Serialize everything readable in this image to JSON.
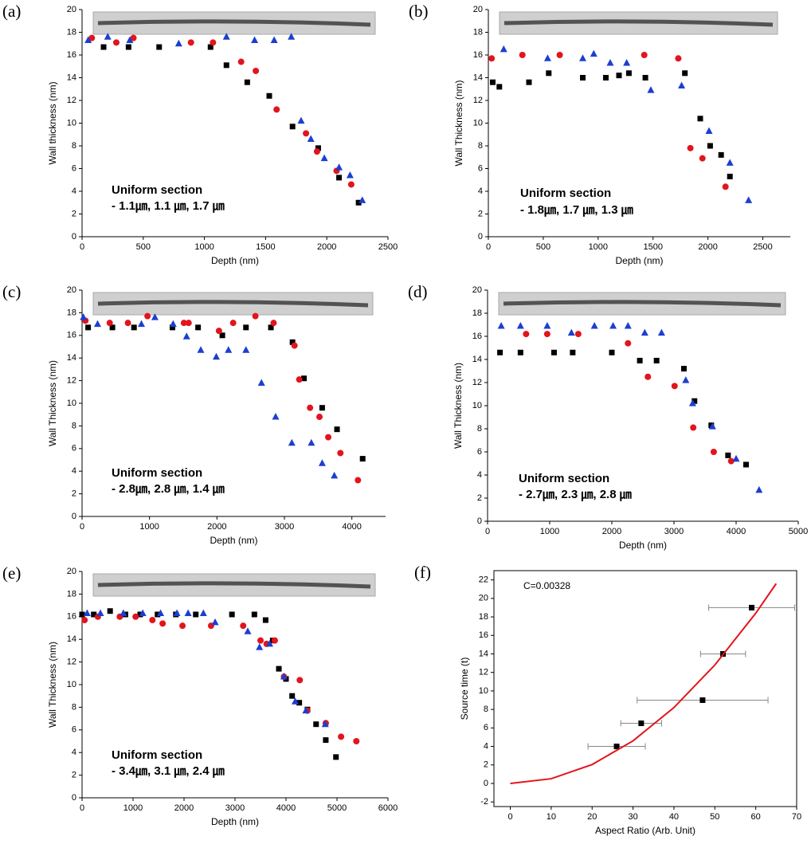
{
  "chart_data": [
    {
      "type": "scatter",
      "panel_label": "(a)",
      "x_label": "Depth (nm)",
      "y_label": "Wall thickness (nm)",
      "annotations": [
        "Uniform section",
        "- 1.1㎛, 1.1 ㎛, 1.7 ㎛"
      ],
      "xlim": [
        0,
        2500
      ],
      "xticks": [
        0,
        500,
        1000,
        1500,
        2000,
        2500
      ],
      "ylim": [
        0,
        20
      ],
      "yticks": [
        0,
        2,
        4,
        6,
        8,
        10,
        12,
        14,
        16,
        18,
        20
      ],
      "series": [
        {
          "marker": "square",
          "color": "#000000",
          "x": [
            176,
            380,
            630,
            1050,
            1180,
            1350,
            1530,
            1720,
            1930,
            2100,
            2260
          ],
          "values": [
            16.7,
            16.7,
            16.7,
            16.7,
            15.1,
            13.6,
            12.4,
            9.7,
            7.8,
            5.2,
            3.0
          ]
        },
        {
          "marker": "circle",
          "color": "#e3141c",
          "x": [
            80,
            280,
            420,
            890,
            1070,
            1300,
            1420,
            1590,
            1830,
            1920,
            2080,
            2200
          ],
          "values": [
            17.5,
            17.1,
            17.5,
            17.1,
            17.1,
            15.4,
            14.6,
            11.2,
            9.1,
            7.5,
            5.8,
            4.6
          ]
        },
        {
          "marker": "triangle",
          "color": "#1c3fd0",
          "x": [
            50,
            210,
            390,
            790,
            1180,
            1410,
            1570,
            1710,
            1790,
            1870,
            1980,
            2100,
            2190,
            2290
          ],
          "values": [
            17.3,
            17.6,
            17.3,
            17.0,
            17.6,
            17.3,
            17.3,
            17.6,
            10.2,
            8.6,
            6.9,
            6.1,
            5.4,
            3.2
          ]
        }
      ]
    },
    {
      "type": "scatter",
      "panel_label": "(b)",
      "x_label": "Depth (nm)",
      "y_label": "Wall Thickness (nm)",
      "annotations": [
        "Uniform section",
        "- 1.8㎛, 1.7 ㎛, 1.3 ㎛"
      ],
      "xlim": [
        0,
        2750
      ],
      "xticks": [
        0,
        500,
        1000,
        1500,
        2000,
        2500
      ],
      "ylim": [
        0,
        20
      ],
      "yticks": [
        0,
        2,
        4,
        6,
        8,
        10,
        12,
        14,
        16,
        18,
        20
      ],
      "series": [
        {
          "marker": "square",
          "color": "#000000",
          "x": [
            40,
            100,
            370,
            550,
            860,
            1070,
            1190,
            1280,
            1430,
            1790,
            1930,
            2020,
            2120,
            2200
          ],
          "values": [
            13.6,
            13.2,
            13.6,
            14.4,
            14.0,
            14.0,
            14.2,
            14.4,
            14.0,
            14.4,
            10.4,
            8.0,
            7.2,
            5.3
          ]
        },
        {
          "marker": "circle",
          "color": "#e3141c",
          "x": [
            30,
            310,
            650,
            1420,
            1730,
            1840,
            1950,
            2160
          ],
          "values": [
            15.7,
            16.0,
            16.0,
            16.0,
            15.7,
            7.8,
            6.9,
            4.4
          ]
        },
        {
          "marker": "triangle",
          "color": "#1c3fd0",
          "x": [
            140,
            540,
            860,
            960,
            1110,
            1260,
            1480,
            1760,
            2010,
            2200,
            2370
          ],
          "values": [
            16.5,
            15.7,
            15.7,
            16.1,
            15.3,
            15.3,
            12.9,
            13.3,
            9.3,
            6.5,
            3.2
          ]
        }
      ]
    },
    {
      "type": "scatter",
      "panel_label": "(c)",
      "x_label": "Depth (nm)",
      "y_label": "Wall Thickness (nm)",
      "annotations": [
        "Uniform section",
        "- 2.8㎛, 2.8 ㎛, 1.4 ㎛"
      ],
      "xlim": [
        0,
        4500
      ],
      "xticks": [
        0,
        1000,
        2000,
        3000,
        4000
      ],
      "ylim": [
        0,
        20
      ],
      "yticks": [
        0,
        2,
        4,
        6,
        8,
        10,
        12,
        14,
        16,
        18,
        20
      ],
      "series": [
        {
          "marker": "square",
          "color": "#000000",
          "x": [
            90,
            450,
            770,
            1340,
            1720,
            2080,
            2430,
            2800,
            3120,
            3290,
            3560,
            3780,
            4160
          ],
          "values": [
            16.7,
            16.7,
            16.7,
            16.7,
            16.7,
            16.0,
            16.7,
            16.7,
            15.4,
            12.2,
            9.6,
            7.7,
            5.1
          ]
        },
        {
          "marker": "circle",
          "color": "#e3141c",
          "x": [
            50,
            410,
            680,
            970,
            1510,
            1580,
            2030,
            2240,
            2570,
            2840,
            3150,
            3220,
            3380,
            3520,
            3650,
            3830,
            4090
          ],
          "values": [
            17.3,
            17.1,
            17.1,
            17.7,
            17.1,
            17.1,
            16.4,
            17.1,
            17.7,
            17.1,
            15.1,
            12.1,
            9.6,
            8.8,
            7.0,
            5.6,
            3.2
          ]
        },
        {
          "marker": "triangle",
          "color": "#1c3fd0",
          "x": [
            20,
            230,
            880,
            1080,
            1350,
            1550,
            1760,
            1990,
            2170,
            2430,
            2660,
            2870,
            3110,
            3400,
            3560,
            3740
          ],
          "values": [
            17.6,
            17.0,
            17.0,
            17.6,
            17.0,
            15.9,
            14.7,
            14.1,
            14.7,
            14.7,
            11.8,
            8.8,
            6.5,
            6.5,
            4.7,
            3.6
          ]
        }
      ]
    },
    {
      "type": "scatter",
      "panel_label": "(d)",
      "x_label": "Depth (nm)",
      "y_label": "Wall Thickness (nm)",
      "annotations": [
        "Uniform section",
        "- 2.7㎛, 2.3 ㎛, 2.8 ㎛"
      ],
      "xlim": [
        0,
        5000
      ],
      "xticks": [
        0,
        1000,
        2000,
        3000,
        4000,
        5000
      ],
      "ylim": [
        0,
        20
      ],
      "yticks": [
        0,
        2,
        4,
        6,
        8,
        10,
        12,
        14,
        16,
        18,
        20
      ],
      "series": [
        {
          "marker": "square",
          "color": "#000000",
          "x": [
            200,
            530,
            1070,
            1370,
            2000,
            2450,
            2720,
            3160,
            3330,
            3600,
            3870,
            4160
          ],
          "values": [
            14.6,
            14.6,
            14.6,
            14.6,
            14.6,
            13.9,
            13.9,
            13.2,
            10.4,
            8.3,
            5.7,
            4.9
          ]
        },
        {
          "marker": "circle",
          "color": "#e3141c",
          "x": [
            620,
            960,
            1460,
            2260,
            2580,
            3010,
            3310,
            3640,
            3920
          ],
          "values": [
            16.2,
            16.2,
            16.2,
            15.4,
            12.5,
            11.7,
            8.1,
            6.0,
            5.2
          ]
        },
        {
          "marker": "triangle",
          "color": "#1c3fd0",
          "x": [
            220,
            530,
            960,
            1350,
            1720,
            2020,
            2260,
            2530,
            2800,
            3190,
            3300,
            3620,
            4000,
            4370
          ],
          "values": [
            16.9,
            16.9,
            16.9,
            16.3,
            16.9,
            16.9,
            16.9,
            16.3,
            16.3,
            12.2,
            10.2,
            8.2,
            5.4,
            2.7
          ]
        }
      ]
    },
    {
      "type": "scatter",
      "panel_label": "(e)",
      "x_label": "Depth (nm)",
      "y_label": "Wall Thickness (nm)",
      "annotations": [
        "Uniform section",
        "- 3.4㎛, 3.1 ㎛, 2.4 ㎛"
      ],
      "xlim": [
        0,
        6000
      ],
      "xticks": [
        0,
        1000,
        2000,
        3000,
        4000,
        5000,
        6000
      ],
      "ylim": [
        0,
        20
      ],
      "yticks": [
        0,
        2,
        4,
        6,
        8,
        10,
        12,
        14,
        16,
        18,
        20
      ],
      "series": [
        {
          "marker": "square",
          "color": "#000000",
          "x": [
            0,
            230,
            550,
            850,
            1140,
            1480,
            1840,
            2230,
            2940,
            3380,
            3600,
            3740,
            3860,
            4000,
            4120,
            4260,
            4420,
            4590,
            4780,
            4980
          ],
          "values": [
            16.2,
            16.2,
            16.5,
            16.2,
            16.2,
            16.2,
            16.2,
            16.2,
            16.2,
            16.2,
            15.7,
            13.9,
            11.4,
            10.5,
            9.0,
            8.4,
            7.8,
            6.5,
            5.1,
            3.6
          ]
        },
        {
          "marker": "circle",
          "color": "#e3141c",
          "x": [
            50,
            310,
            740,
            1050,
            1380,
            1580,
            1970,
            2530,
            3160,
            3500,
            3620,
            3780,
            3960,
            4270,
            4420,
            4780,
            5080,
            5380
          ],
          "values": [
            15.7,
            16.0,
            16.0,
            16.0,
            15.7,
            15.4,
            15.2,
            15.2,
            15.2,
            13.9,
            13.6,
            13.9,
            10.7,
            10.4,
            7.7,
            6.6,
            5.4,
            5.0
          ]
        },
        {
          "marker": "triangle",
          "color": "#1c3fd0",
          "x": [
            100,
            360,
            810,
            1190,
            1540,
            1860,
            2080,
            2380,
            2610,
            3250,
            3480,
            3680,
            3960,
            4180,
            4390,
            4770
          ],
          "values": [
            16.3,
            16.3,
            16.3,
            16.3,
            16.3,
            16.3,
            16.3,
            16.3,
            15.5,
            14.7,
            13.3,
            13.6,
            10.7,
            8.5,
            7.7,
            6.5
          ]
        }
      ]
    },
    {
      "type": "scatter",
      "panel_label": "(f)",
      "x_label": "Aspect Ratio (Arb. Unit)",
      "y_label": "Source time (t)",
      "annotations": [
        "C=0.00328"
      ],
      "frame": true,
      "xlim": [
        -4,
        70
      ],
      "xticks": [
        0,
        10,
        20,
        30,
        40,
        50,
        60,
        70
      ],
      "ylim": [
        -2.5,
        23
      ],
      "yticks": [
        -2,
        0,
        2,
        4,
        6,
        8,
        10,
        12,
        14,
        16,
        18,
        20,
        22
      ],
      "series": [
        {
          "marker": "square",
          "color": "#000000",
          "x": [
            26,
            32,
            47,
            52,
            59
          ],
          "values": [
            4,
            6.5,
            9,
            14,
            19
          ],
          "xerr": [
            7,
            5,
            16,
            5.5,
            10.5
          ]
        },
        {
          "marker": "line",
          "color": "#e3141c",
          "x": [
            0,
            10,
            20,
            30,
            40,
            50,
            60,
            65
          ],
          "values": [
            0,
            0.51,
            2.04,
            4.6,
            8.2,
            12.8,
            18.4,
            21.6
          ]
        }
      ]
    }
  ]
}
